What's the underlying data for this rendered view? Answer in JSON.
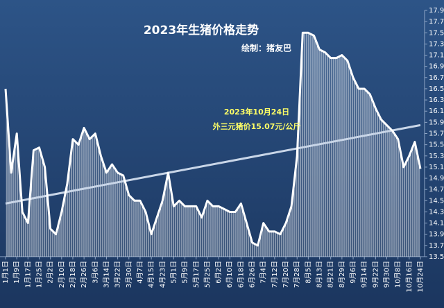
{
  "chart_data": {
    "type": "line",
    "title": "2023年生猪价格走势",
    "subtitle": "绘制：猪友巴",
    "annotation": [
      "2023年10月24日",
      "外三元猪价15.07元/公斤"
    ],
    "categories": [
      "1月1日",
      null,
      "1月9日",
      null,
      "1月17日",
      null,
      "1月25日",
      null,
      "2月2日",
      null,
      "2月10日",
      null,
      "2月18日",
      null,
      "2月26日",
      null,
      "3月6日",
      null,
      "3月14日",
      null,
      "3月22日",
      null,
      "3月30日",
      null,
      "4月7日",
      null,
      "4月15日",
      null,
      "4月23日",
      null,
      "5月1日",
      null,
      "5月9日",
      null,
      "5月17日",
      null,
      "5月25日",
      null,
      "6月2日",
      null,
      "6月10日",
      null,
      "6月18日",
      null,
      "6月26日",
      null,
      "7月4日",
      null,
      "7月12日",
      null,
      "7月20日",
      null,
      "7月28日",
      null,
      "8月5日",
      null,
      "8月13日",
      null,
      "8月21日",
      null,
      "8月29日",
      null,
      "9月6日",
      null,
      "9月14日",
      null,
      "9月22日",
      null,
      "9月30日",
      null,
      "10月8日",
      null,
      "10月16日",
      null,
      "10月24日"
    ],
    "series": [
      {
        "color": "#ffffff",
        "values": [
          16.5,
          15.0,
          15.7,
          14.3,
          14.1,
          15.4,
          15.45,
          15.1,
          14.0,
          13.9,
          14.3,
          14.8,
          15.6,
          15.5,
          15.8,
          15.6,
          15.7,
          15.3,
          15.0,
          15.15,
          15.0,
          14.95,
          14.6,
          14.5,
          14.5,
          14.3,
          13.9,
          14.2,
          14.5,
          15.0,
          14.4,
          14.5,
          14.4,
          14.4,
          14.4,
          14.2,
          14.5,
          14.4,
          14.4,
          14.35,
          14.3,
          14.3,
          14.45,
          14.1,
          13.75,
          13.7,
          14.1,
          13.95,
          13.95,
          13.9,
          14.1,
          14.4,
          15.3,
          17.5,
          17.5,
          17.45,
          17.2,
          17.15,
          17.05,
          17.05,
          17.1,
          17.0,
          16.7,
          16.5,
          16.5,
          16.4,
          16.15,
          15.95,
          15.85,
          15.75,
          15.6,
          15.1,
          15.3,
          15.55,
          15.07
        ]
      }
    ],
    "trend": [
      14.45,
      15.85
    ],
    "trend_color": "#c9d6e8",
    "ylim": [
      13.5,
      17.9
    ],
    "yticks": [
      13.5,
      13.7,
      13.9,
      14.1,
      14.3,
      14.5,
      14.7,
      14.9,
      15.1,
      15.3,
      15.5,
      15.7,
      15.9,
      16.1,
      16.3,
      16.5,
      16.7,
      16.9,
      17.1,
      17.3,
      17.5,
      17.7,
      17.9
    ],
    "grid": false
  }
}
